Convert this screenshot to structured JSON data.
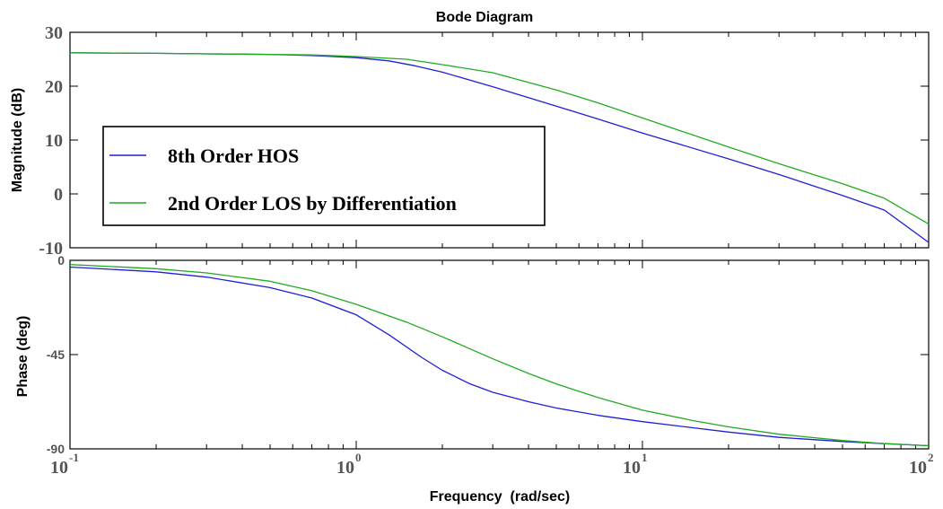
{
  "chart_data": [
    {
      "type": "line",
      "title": "Bode Diagram",
      "xlabel": "",
      "ylabel": "Magnitude (dB)",
      "xscale": "log",
      "xlim": [
        0.1,
        100
      ],
      "ylim": [
        -10,
        30
      ],
      "yticks": [
        "-10",
        "0",
        "10",
        "20",
        "30"
      ],
      "grid": false,
      "legend": {
        "placement": "left",
        "entries": [
          "8th Order HOS",
          "2nd Order LOS by Differentiation"
        ]
      },
      "series": [
        {
          "name": "8th Order HOS",
          "color": "#1f1fd6",
          "x": [
            0.1,
            0.2,
            0.3,
            0.5,
            0.7,
            1.0,
            1.3,
            1.6,
            2.0,
            3.0,
            5.0,
            7.0,
            10,
            20,
            30,
            50,
            70,
            100
          ],
          "y": [
            26.2,
            26.1,
            26.0,
            25.9,
            25.7,
            25.3,
            24.7,
            23.8,
            22.6,
            19.9,
            16.3,
            13.9,
            11.3,
            6.5,
            3.6,
            -0.3,
            -3.0,
            -9.0
          ]
        },
        {
          "name": "2nd Order LOS by Differentiation",
          "color": "#22aa22",
          "x": [
            0.1,
            0.2,
            0.3,
            0.5,
            0.7,
            1.0,
            1.5,
            2.0,
            3.0,
            5.0,
            7.0,
            10,
            20,
            30,
            50,
            70,
            100
          ],
          "y": [
            26.2,
            26.1,
            26.0,
            25.9,
            25.8,
            25.5,
            25.0,
            24.0,
            22.5,
            19.3,
            16.9,
            14.1,
            8.7,
            5.6,
            1.9,
            -0.8,
            -5.6
          ]
        }
      ]
    },
    {
      "type": "line",
      "title": "",
      "xlabel": "Frequency  (rad/sec)",
      "ylabel": "Phase (deg)",
      "xscale": "log",
      "xlim": [
        0.1,
        100
      ],
      "ylim": [
        -90,
        0
      ],
      "xticks": [
        {
          "base": "10",
          "exp": "-1"
        },
        {
          "base": "10",
          "exp": "0"
        },
        {
          "base": "10",
          "exp": "1"
        },
        {
          "base": "10",
          "exp": "2"
        }
      ],
      "yticks": [
        "-90",
        "-45",
        "0"
      ],
      "grid": false,
      "series": [
        {
          "name": "8th Order HOS",
          "color": "#1f1fd6",
          "x": [
            0.1,
            0.2,
            0.3,
            0.5,
            0.7,
            1.0,
            1.3,
            1.7,
            2.0,
            2.5,
            3.0,
            4.0,
            5.0,
            7.0,
            10,
            20,
            30,
            50,
            70,
            100
          ],
          "y": [
            -3.2,
            -5.5,
            -8.0,
            -13.0,
            -18.0,
            -26.0,
            -35.5,
            -46.5,
            -52.5,
            -59.0,
            -63.0,
            -67.5,
            -70.5,
            -74.0,
            -77.0,
            -82.0,
            -84.5,
            -86.5,
            -87.5,
            -88.5
          ]
        },
        {
          "name": "2nd Order LOS by Differentiation",
          "color": "#22aa22",
          "x": [
            0.1,
            0.2,
            0.3,
            0.5,
            0.7,
            1.0,
            1.5,
            2.0,
            3.0,
            4.0,
            5.0,
            7.0,
            10,
            15,
            20,
            30,
            50,
            70,
            100
          ],
          "y": [
            -2.0,
            -4.0,
            -6.0,
            -10.0,
            -14.5,
            -21.0,
            -29.5,
            -36.5,
            -47.0,
            -54.0,
            -59.0,
            -65.5,
            -71.5,
            -76.5,
            -79.5,
            -83.0,
            -86.0,
            -87.5,
            -88.5
          ]
        }
      ]
    }
  ]
}
